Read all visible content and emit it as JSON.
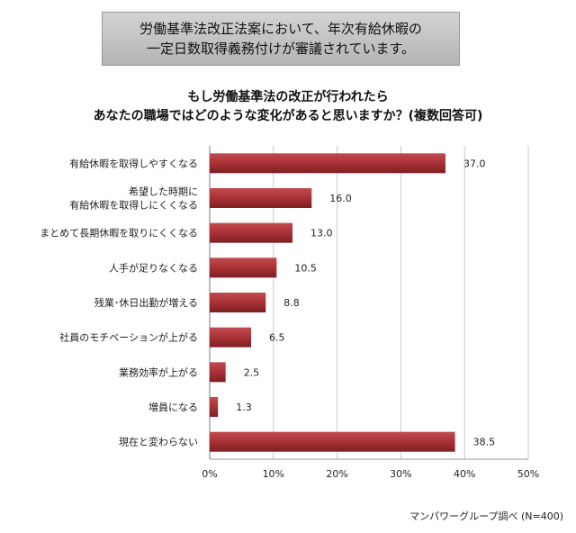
{
  "banner": {
    "line1": "労働基準法改正法案において、年次有給休暇の",
    "line2": "一定日数取得義務付けが審議されています。"
  },
  "question": {
    "line1": "もし労働基準法の改正が行われたら",
    "line2": "あなたの職場ではどのような変化があると思いますか？(複数回答可)"
  },
  "source": "マンパワーグループ調べ (N=400)",
  "colors": {
    "bar": "#a83236",
    "bar_dark": "#7e1e22"
  },
  "chart_data": {
    "type": "bar",
    "orientation": "horizontal",
    "categories": [
      [
        "有給休暇を取得しやすくなる"
      ],
      [
        "希望した時期に",
        "有給休暇を取得しにくくなる"
      ],
      [
        "まとめて長期休暇を取りにくくなる"
      ],
      [
        "人手が足りなくなる"
      ],
      [
        "残業･休日出勤が増える"
      ],
      [
        "社員のモチベーションが上がる"
      ],
      [
        "業務効率が上がる"
      ],
      [
        "増員になる"
      ],
      [
        "現在と変わらない"
      ]
    ],
    "values": [
      37.0,
      16.0,
      13.0,
      10.5,
      8.8,
      6.5,
      2.5,
      1.3,
      38.5
    ],
    "value_labels": [
      "37.0",
      "16.0",
      "13.0",
      "10.5",
      "8.8",
      "6.5",
      "2.5",
      "1.3",
      "38.5"
    ],
    "xlim": [
      0,
      50
    ],
    "xticks": [
      "0%",
      "10%",
      "20%",
      "30%",
      "40%",
      "50%"
    ],
    "grid": true
  }
}
